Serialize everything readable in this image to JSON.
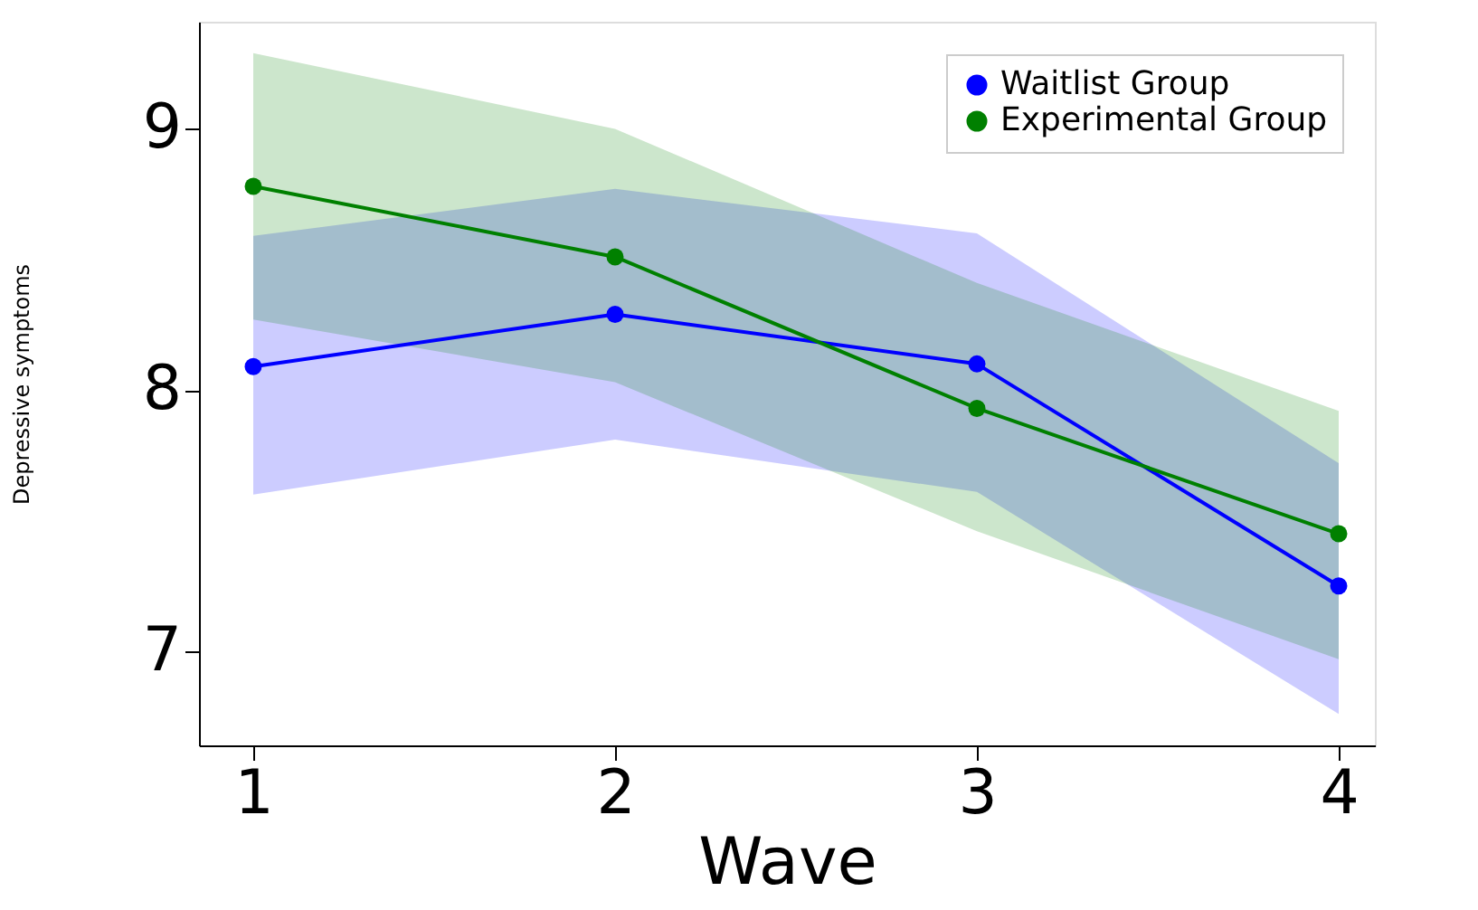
{
  "chart_data": {
    "type": "line",
    "xlabel": "Wave",
    "ylabel": "Depressive symptoms",
    "x": [
      1,
      2,
      3,
      4
    ],
    "series": [
      {
        "name": "Waitlist Group",
        "color": "#0000ff",
        "values": [
          8.09,
          8.29,
          8.1,
          7.25
        ],
        "lower": [
          7.6,
          7.81,
          7.61,
          6.76
        ],
        "upper": [
          8.59,
          8.77,
          8.6,
          7.72
        ]
      },
      {
        "name": "Experimental Group",
        "color": "#008000",
        "values": [
          8.78,
          8.51,
          7.93,
          7.45
        ],
        "lower": [
          8.27,
          8.03,
          7.46,
          6.97
        ],
        "upper": [
          9.29,
          9.0,
          8.41,
          7.92
        ]
      }
    ],
    "xlim": [
      0.85,
      4.1
    ],
    "xticks": [
      1,
      2,
      3,
      4
    ],
    "ylim": [
      6.64,
      9.41
    ],
    "yticks": [
      7,
      8,
      9
    ],
    "grid": false,
    "legend": "top right",
    "marker": "circle",
    "line_style": "solid"
  }
}
